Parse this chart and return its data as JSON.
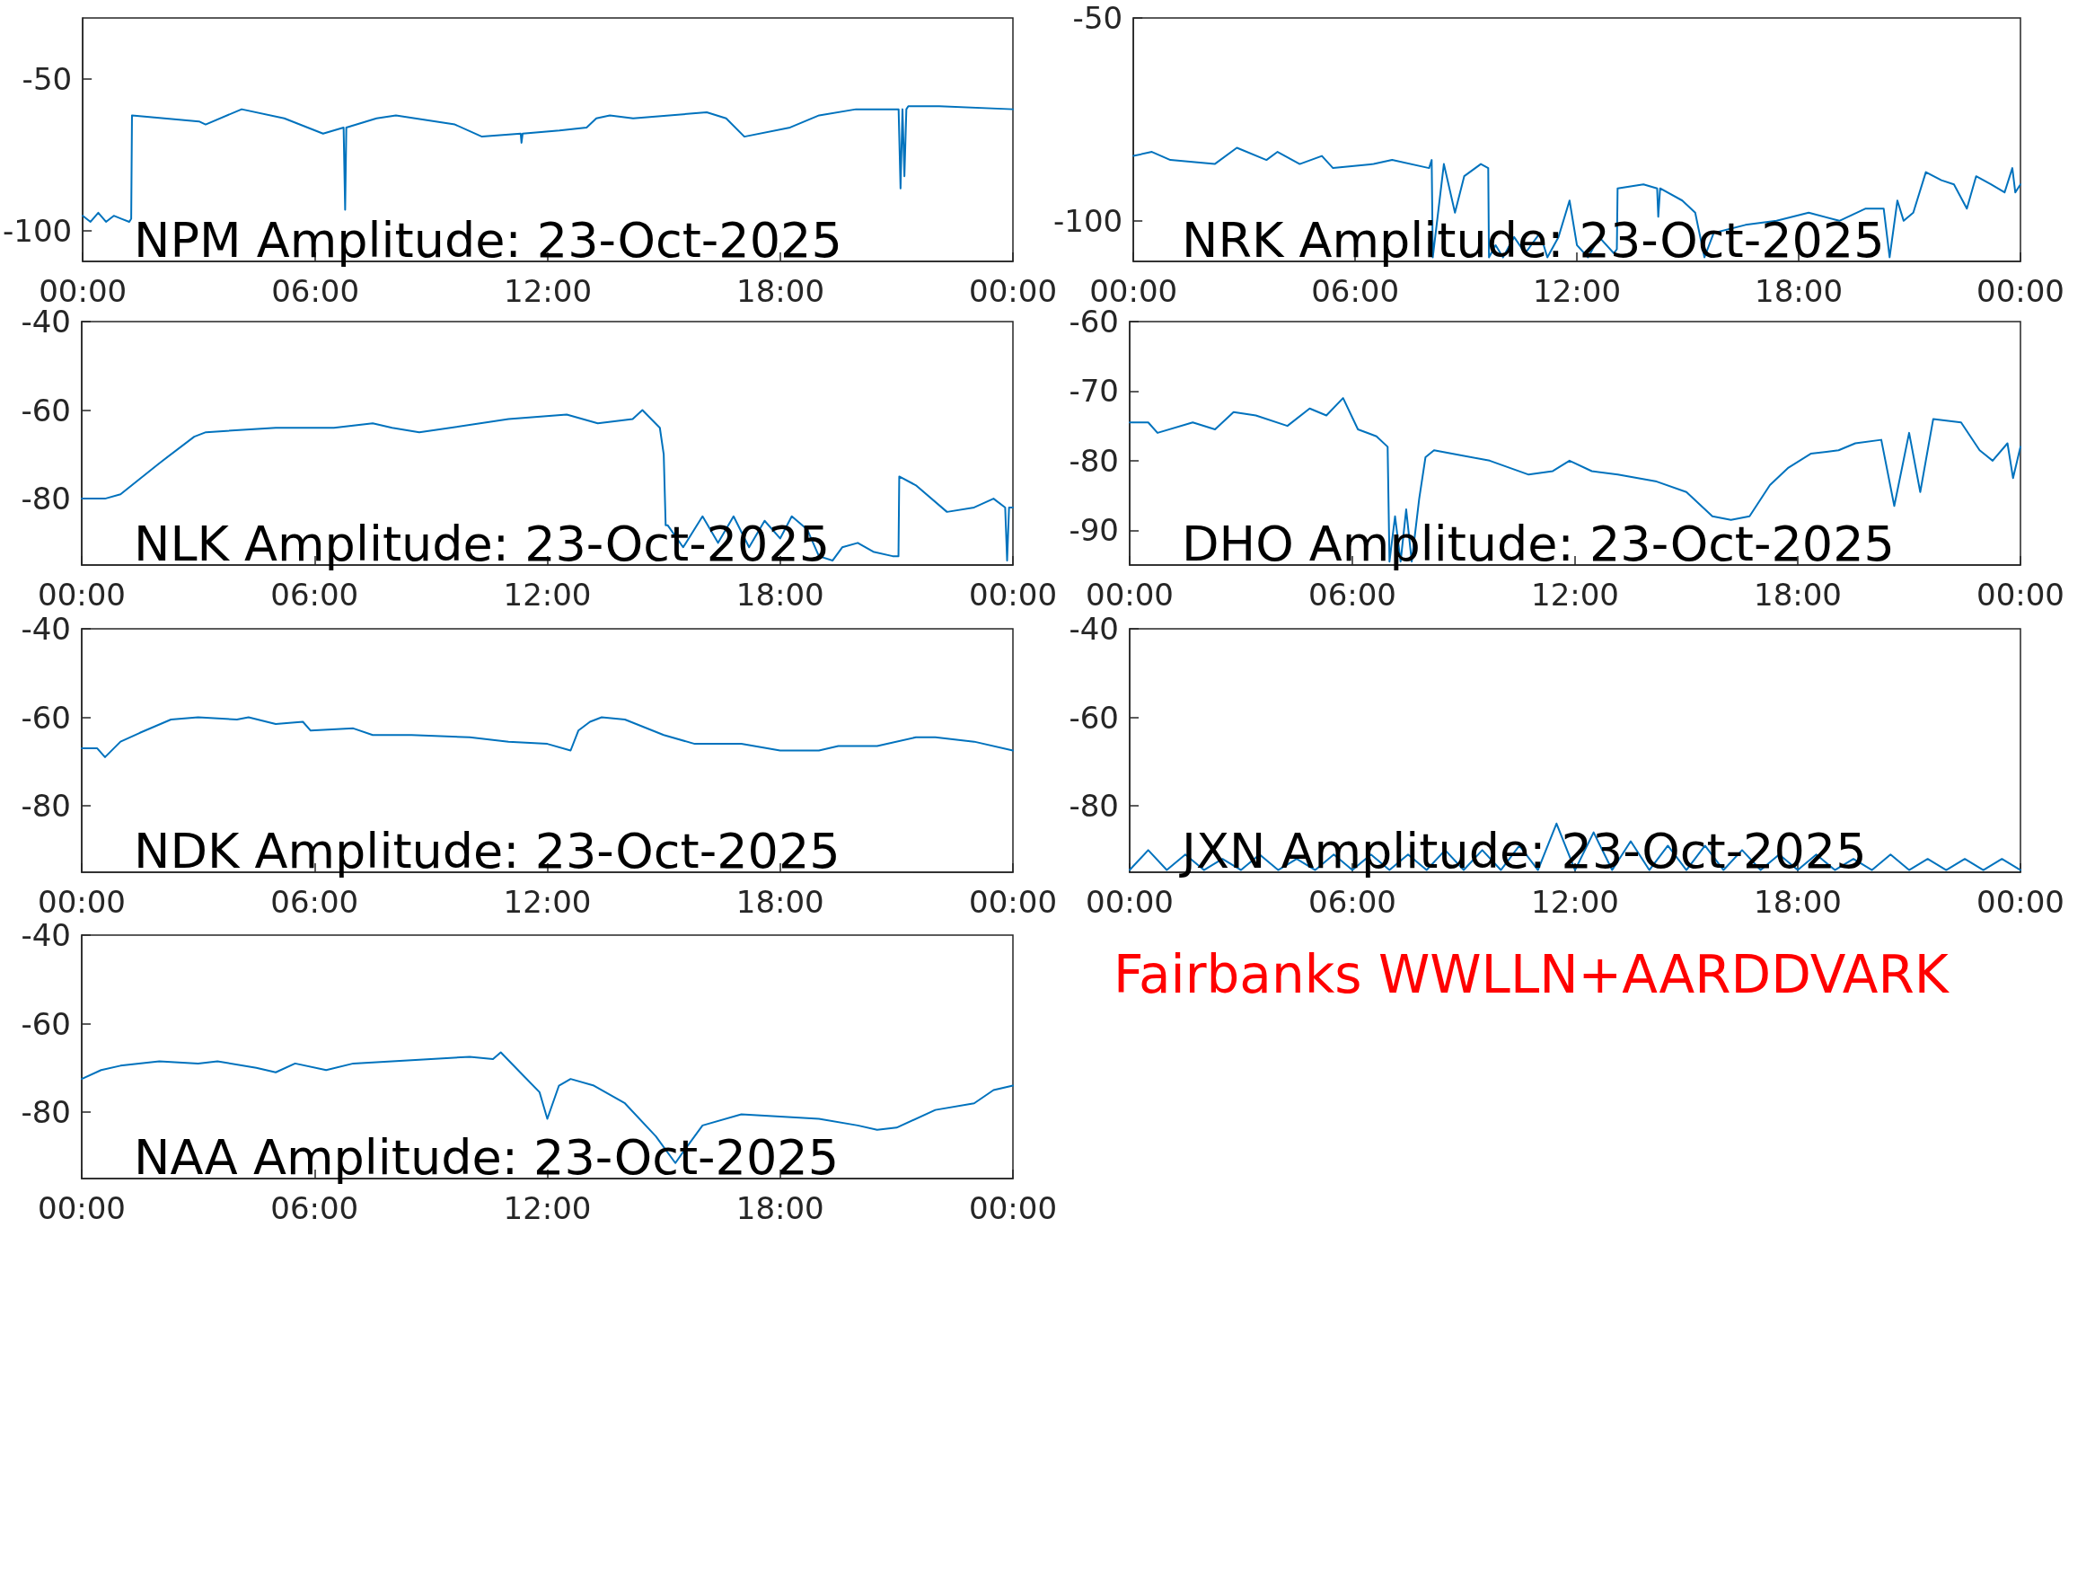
{
  "chart_data": [
    {
      "type": "line",
      "title": "NPM Amplitude: 23-Oct-2025",
      "xlim": [
        0,
        24
      ],
      "xticks": [
        {
          "value": 0,
          "label": "00:00"
        },
        {
          "value": 6,
          "label": "06:00"
        },
        {
          "value": 12,
          "label": "12:00"
        },
        {
          "value": 18,
          "label": "18:00"
        },
        {
          "value": 24,
          "label": "00:00"
        }
      ],
      "ylim": [
        -110,
        -30
      ],
      "yticks": [
        -100,
        -50
      ],
      "x": [
        0,
        0.2,
        0.4,
        0.6,
        0.8,
        1.0,
        1.2,
        1.25,
        1.27,
        3.0,
        3.17,
        4.1,
        5.2,
        6.2,
        6.73,
        6.77,
        6.8,
        7.58,
        8.08,
        9.6,
        10.3,
        11.3,
        11.32,
        11.35,
        12.3,
        13.0,
        13.25,
        13.6,
        14.2,
        16.1,
        16.6,
        17.07,
        18.25,
        19.0,
        19.95,
        21.05,
        21.1,
        21.15,
        21.2,
        21.25,
        21.3,
        22.1,
        24
      ],
      "series": [
        {
          "color": "#0072bd",
          "values": [
            -95,
            -97,
            -94,
            -97,
            -95,
            -96,
            -97,
            -96,
            -62,
            -64,
            -65,
            -60,
            -63,
            -68,
            -66,
            -93,
            -66,
            -63,
            -62,
            -65,
            -69,
            -68,
            -71,
            -68,
            -67,
            -66,
            -63,
            -62,
            -63,
            -61,
            -63,
            -69,
            -66,
            -62,
            -60,
            -60,
            -86,
            -60,
            -82,
            -60,
            -59,
            -59,
            -60
          ]
        }
      ]
    },
    {
      "type": "line",
      "title": "NRK Amplitude: 23-Oct-2025",
      "xlim": [
        0,
        24
      ],
      "xticks": [
        {
          "value": 0,
          "label": "00:00"
        },
        {
          "value": 6,
          "label": "06:00"
        },
        {
          "value": 12,
          "label": "12:00"
        },
        {
          "value": 18,
          "label": "18:00"
        },
        {
          "value": 24,
          "label": "00:00"
        }
      ],
      "ylim": [
        -110,
        -50
      ],
      "yticks": [
        -100,
        -50
      ],
      "x": [
        0,
        0.5,
        1.0,
        2.2,
        2.8,
        3.6,
        3.9,
        4.5,
        5.1,
        5.4,
        6.5,
        7.0,
        8.0,
        8.07,
        8.1,
        8.4,
        8.7,
        8.95,
        9.4,
        9.6,
        9.62,
        9.8,
        10.0,
        10.3,
        10.6,
        11.0,
        11.2,
        11.5,
        11.8,
        12.0,
        12.3,
        12.6,
        13.0,
        13.08,
        13.1,
        13.8,
        14.17,
        14.2,
        14.25,
        14.85,
        15.2,
        15.45,
        15.7,
        16.56,
        17.4,
        18.27,
        19.1,
        19.8,
        20.3,
        20.46,
        20.67,
        20.84,
        21.1,
        21.44,
        21.86,
        22.2,
        22.55,
        22.8,
        23.2,
        23.57,
        23.78,
        23.86,
        24
      ],
      "series": [
        {
          "color": "#0072bd",
          "values": [
            -84,
            -83,
            -85,
            -86,
            -82,
            -85,
            -83,
            -86,
            -84,
            -87,
            -86,
            -85,
            -87,
            -85,
            -109,
            -86,
            -98,
            -89,
            -86,
            -87,
            -109,
            -106,
            -109,
            -104,
            -108,
            -103,
            -109,
            -104,
            -95,
            -106,
            -109,
            -104,
            -108,
            -107,
            -92,
            -91,
            -92,
            -99,
            -92,
            -95,
            -98,
            -109,
            -103,
            -101,
            -100,
            -98,
            -100,
            -97,
            -97,
            -109,
            -95,
            -100,
            -98,
            -88,
            -90,
            -91,
            -97,
            -89,
            -91,
            -93,
            -87,
            -93,
            -91
          ]
        }
      ]
    },
    {
      "type": "line",
      "title": "NLK Amplitude: 23-Oct-2025",
      "xlim": [
        0,
        24
      ],
      "xticks": [
        {
          "value": 0,
          "label": "00:00"
        },
        {
          "value": 6,
          "label": "06:00"
        },
        {
          "value": 12,
          "label": "12:00"
        },
        {
          "value": 18,
          "label": "18:00"
        },
        {
          "value": 24,
          "label": "00:00"
        }
      ],
      "ylim": [
        -95,
        -40
      ],
      "yticks": [
        -80,
        -60,
        -40
      ],
      "x": [
        0,
        0.6,
        1.0,
        2.0,
        2.9,
        3.2,
        5.0,
        6.0,
        6.5,
        7.5,
        8.0,
        8.7,
        9.5,
        11.0,
        12.5,
        13.3,
        14.2,
        14.45,
        14.9,
        15.0,
        15.05,
        15.1,
        15.5,
        16.0,
        16.4,
        16.8,
        17.2,
        17.6,
        18.0,
        18.3,
        18.7,
        19.0,
        19.35,
        19.6,
        20.0,
        20.4,
        20.9,
        21.05,
        21.07,
        21.5,
        22.3,
        23.0,
        23.5,
        23.8,
        23.85,
        23.9,
        24
      ],
      "series": [
        {
          "color": "#0072bd",
          "values": [
            -80,
            -80,
            -79,
            -72,
            -66,
            -65,
            -64,
            -64,
            -64,
            -63,
            -64,
            -65,
            -64,
            -62,
            -61,
            -63,
            -62,
            -60,
            -64,
            -70,
            -86,
            -86,
            -91,
            -84,
            -90,
            -84,
            -91,
            -85,
            -89,
            -84,
            -87,
            -93,
            -94,
            -91,
            -90,
            -92,
            -93,
            -93,
            -75,
            -77,
            -83,
            -82,
            -80,
            -82,
            -94,
            -82,
            -82
          ]
        }
      ]
    },
    {
      "type": "line",
      "title": "DHO Amplitude: 23-Oct-2025",
      "xlim": [
        0,
        24
      ],
      "xticks": [
        {
          "value": 0,
          "label": "00:00"
        },
        {
          "value": 6,
          "label": "06:00"
        },
        {
          "value": 12,
          "label": "12:00"
        },
        {
          "value": 18,
          "label": "18:00"
        },
        {
          "value": 24,
          "label": "00:00"
        }
      ],
      "ylim": [
        -95,
        -60
      ],
      "yticks": [
        -90,
        -80,
        -70,
        -60
      ],
      "x": [
        0,
        0.5,
        0.75,
        1.7,
        2.3,
        2.8,
        3.4,
        4.25,
        4.85,
        5.3,
        5.75,
        6.15,
        6.65,
        6.95,
        7.0,
        7.15,
        7.3,
        7.45,
        7.6,
        7.8,
        7.97,
        8.2,
        9.7,
        10.75,
        11.4,
        11.85,
        12.45,
        13.15,
        14.2,
        15.0,
        15.7,
        16.2,
        16.7,
        17.25,
        17.75,
        18.35,
        19.1,
        19.55,
        20.25,
        20.6,
        21.0,
        21.3,
        21.65,
        22.4,
        22.9,
        23.25,
        23.65,
        23.8,
        24
      ],
      "series": [
        {
          "color": "#0072bd",
          "values": [
            -74.5,
            -74.5,
            -76,
            -74.5,
            -75.5,
            -73,
            -73.5,
            -75,
            -72.5,
            -73.5,
            -71,
            -75.5,
            -76.5,
            -78,
            -94.5,
            -88,
            -94.5,
            -87,
            -94.5,
            -85.5,
            -79.5,
            -78.5,
            -80,
            -82,
            -81.5,
            -80,
            -81.5,
            -82,
            -83,
            -84.5,
            -88,
            -88.5,
            -88,
            -83.5,
            -81,
            -79,
            -78.5,
            -77.5,
            -77,
            -86.5,
            -76,
            -84.5,
            -74,
            -74.5,
            -78.5,
            -80,
            -77.5,
            -82.5,
            -78
          ]
        }
      ]
    },
    {
      "type": "line",
      "title": "NDK Amplitude: 23-Oct-2025",
      "xlim": [
        0,
        24
      ],
      "xticks": [
        {
          "value": 0,
          "label": "00:00"
        },
        {
          "value": 6,
          "label": "06:00"
        },
        {
          "value": 12,
          "label": "12:00"
        },
        {
          "value": 18,
          "label": "18:00"
        },
        {
          "value": 24,
          "label": "00:00"
        }
      ],
      "ylim": [
        -95,
        -40
      ],
      "yticks": [
        -80,
        -60,
        -40
      ],
      "x": [
        0,
        0.4,
        0.6,
        1.0,
        1.5,
        2.3,
        3.0,
        4.0,
        4.3,
        5.0,
        5.7,
        5.9,
        7.0,
        7.5,
        8.5,
        10.0,
        11.0,
        12.0,
        12.6,
        12.8,
        13.1,
        13.4,
        14.0,
        15.0,
        15.8,
        17.0,
        18.0,
        19.0,
        19.5,
        20.5,
        21.5,
        22.0,
        23.0,
        24
      ],
      "series": [
        {
          "color": "#0072bd",
          "values": [
            -67,
            -67,
            -69,
            -65.5,
            -63.5,
            -60.5,
            -60,
            -60.5,
            -60,
            -61.5,
            -61,
            -63,
            -62.5,
            -64,
            -64,
            -64.5,
            -65.5,
            -66,
            -67.5,
            -63,
            -61,
            -60,
            -60.5,
            -64,
            -66,
            -66,
            -67.5,
            -67.5,
            -66.5,
            -66.5,
            -64.5,
            -64.5,
            -65.5,
            -67.5
          ]
        }
      ]
    },
    {
      "type": "line",
      "title": "JXN Amplitude: 23-Oct-2025",
      "xlim": [
        0,
        24
      ],
      "xticks": [
        {
          "value": 0,
          "label": "00:00"
        },
        {
          "value": 6,
          "label": "06:00"
        },
        {
          "value": 12,
          "label": "12:00"
        },
        {
          "value": 18,
          "label": "18:00"
        },
        {
          "value": 24,
          "label": "00:00"
        }
      ],
      "ylim": [
        -95,
        -40
      ],
      "yticks": [
        -80,
        -60,
        -40
      ],
      "x": [
        0,
        0.5,
        1,
        1.5,
        2,
        2.5,
        3,
        3.5,
        4,
        4.5,
        5,
        5.5,
        6,
        6.5,
        7,
        7.5,
        8,
        8.5,
        9,
        9.5,
        10,
        10.5,
        11,
        11.5,
        12,
        12.5,
        13,
        13.5,
        14,
        14.5,
        15,
        15.5,
        16,
        16.5,
        17,
        17.5,
        18,
        18.5,
        19,
        19.5,
        20,
        20.5,
        21,
        21.5,
        22,
        22.5,
        23,
        23.5,
        24
      ],
      "series": [
        {
          "color": "#0072bd",
          "values": [
            -94.5,
            -90,
            -94.5,
            -91,
            -94.5,
            -92,
            -94.5,
            -91,
            -94.5,
            -92,
            -94.5,
            -91,
            -94.5,
            -91,
            -94.5,
            -91,
            -94.5,
            -90,
            -94.5,
            -90,
            -94.5,
            -89,
            -94.5,
            -84,
            -94.5,
            -86,
            -94.5,
            -88,
            -94.5,
            -89,
            -94.5,
            -89,
            -94.5,
            -90,
            -94.5,
            -91,
            -94.5,
            -91,
            -94.5,
            -92,
            -94.5,
            -91,
            -94.5,
            -92,
            -94.5,
            -92,
            -94.5,
            -92,
            -94.5
          ]
        }
      ]
    },
    {
      "type": "line",
      "title": "NAA Amplitude: 23-Oct-2025",
      "xlim": [
        0,
        24
      ],
      "xticks": [
        {
          "value": 0,
          "label": "00:00"
        },
        {
          "value": 6,
          "label": "06:00"
        },
        {
          "value": 12,
          "label": "12:00"
        },
        {
          "value": 18,
          "label": "18:00"
        },
        {
          "value": 24,
          "label": "00:00"
        }
      ],
      "ylim": [
        -95,
        -40
      ],
      "yticks": [
        -80,
        -60,
        -40
      ],
      "x": [
        0,
        0.5,
        1.0,
        2.0,
        3.0,
        3.5,
        4.5,
        5.0,
        5.5,
        6.3,
        7.0,
        8.0,
        9.0,
        10.0,
        10.6,
        10.8,
        11.3,
        11.8,
        12.0,
        12.3,
        12.6,
        13.2,
        14.0,
        14.8,
        15.3,
        15.5,
        16.0,
        17.0,
        18.0,
        19.0,
        20.0,
        20.5,
        21.0,
        22.0,
        23.0,
        23.5,
        24
      ],
      "series": [
        {
          "color": "#0072bd",
          "values": [
            -72.5,
            -70.5,
            -69.5,
            -68.5,
            -69,
            -68.5,
            -70,
            -71,
            -69,
            -70.5,
            -69,
            -68.5,
            -68,
            -67.5,
            -68,
            -66.5,
            -71,
            -75.5,
            -81.5,
            -74,
            -72.5,
            -74,
            -78,
            -85.5,
            -91.5,
            -89,
            -83,
            -80.5,
            -81,
            -81.5,
            -83,
            -84,
            -83.5,
            -79.5,
            -78,
            -75,
            -74
          ]
        }
      ]
    },
    {
      "type": "other",
      "annotations": [
        "Fairbanks WWLLN+AARDDVARK"
      ],
      "color": "#ff0000"
    }
  ]
}
